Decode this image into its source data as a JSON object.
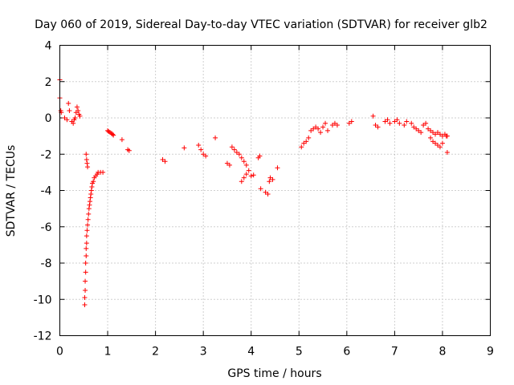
{
  "chart_data": {
    "type": "scatter",
    "title": "Day 060 of 2019, Sidereal Day-to-day VTEC variation (SDTVAR) for receiver glb2",
    "xlabel": "GPS time / hours",
    "ylabel": "SDTVAR / TECUs",
    "xlim": [
      0,
      9
    ],
    "ylim": [
      -12,
      4
    ],
    "xticks": [
      "0",
      "1",
      "2",
      "3",
      "4",
      "5",
      "6",
      "7",
      "8",
      "9"
    ],
    "yticks": [
      "-12",
      "-10",
      "-8",
      "-6",
      "-4",
      "-2",
      "0",
      "2",
      "4"
    ],
    "grid": true,
    "marker": "+",
    "series": [
      {
        "name": "SDTVAR",
        "color": "#ff0000",
        "x": [
          0.0,
          0.0,
          0.02,
          0.03,
          0.1,
          0.15,
          0.18,
          0.2,
          0.25,
          0.28,
          0.3,
          0.32,
          0.34,
          0.36,
          0.38,
          0.4,
          0.42,
          0.52,
          0.52,
          0.53,
          0.53,
          0.54,
          0.54,
          0.55,
          0.55,
          0.56,
          0.56,
          0.57,
          0.58,
          0.59,
          0.6,
          0.61,
          0.62,
          0.63,
          0.64,
          0.65,
          0.66,
          0.67,
          0.68,
          0.7,
          0.72,
          0.75,
          0.78,
          0.8,
          0.85,
          0.9,
          0.55,
          0.56,
          0.57,
          0.58,
          1.0,
          1.02,
          1.05,
          1.08,
          1.1,
          1.12,
          1.3,
          1.42,
          1.45,
          2.15,
          2.2,
          2.6,
          2.9,
          2.95,
          3.0,
          3.05,
          3.25,
          3.5,
          3.55,
          3.6,
          3.65,
          3.7,
          3.75,
          3.8,
          3.85,
          3.9,
          3.95,
          3.8,
          3.85,
          3.9,
          4.0,
          4.05,
          4.15,
          4.18,
          4.2,
          4.3,
          4.35,
          4.38,
          4.4,
          4.45,
          4.55,
          5.05,
          5.1,
          5.15,
          5.2,
          5.25,
          5.3,
          5.35,
          5.4,
          5.45,
          5.5,
          5.55,
          5.6,
          5.7,
          5.75,
          5.8,
          6.05,
          6.1,
          6.55,
          6.6,
          6.65,
          6.8,
          6.85,
          6.9,
          7.0,
          7.05,
          7.1,
          7.2,
          7.25,
          7.35,
          7.4,
          7.45,
          7.5,
          7.55,
          7.6,
          7.65,
          7.7,
          7.75,
          7.8,
          7.85,
          7.9,
          7.95,
          8.0,
          8.05,
          8.08,
          8.1,
          7.75,
          7.8,
          7.85,
          7.9,
          7.95,
          8.0,
          8.1
        ],
        "y": [
          2.1,
          1.1,
          0.4,
          0.3,
          0.0,
          -0.1,
          0.8,
          0.4,
          -0.2,
          -0.3,
          -0.1,
          0.0,
          0.3,
          0.6,
          0.4,
          0.2,
          0.1,
          -10.3,
          -9.9,
          -9.5,
          -9.0,
          -8.5,
          -8.0,
          -7.6,
          -7.2,
          -6.9,
          -6.5,
          -6.2,
          -5.9,
          -5.6,
          -5.3,
          -5.0,
          -4.8,
          -4.6,
          -4.4,
          -4.2,
          -4.0,
          -3.8,
          -3.6,
          -3.5,
          -3.3,
          -3.2,
          -3.1,
          -3.0,
          -3.0,
          -3.0,
          -2.0,
          -2.3,
          -2.5,
          -2.7,
          -0.7,
          -0.75,
          -0.8,
          -0.85,
          -0.9,
          -0.95,
          -1.2,
          -1.75,
          -1.8,
          -2.3,
          -2.4,
          -1.65,
          -1.5,
          -1.75,
          -2.0,
          -2.1,
          -1.1,
          -2.5,
          -2.6,
          -1.6,
          -1.75,
          -1.9,
          -2.0,
          -2.2,
          -2.4,
          -2.6,
          -2.9,
          -3.5,
          -3.3,
          -3.1,
          -3.2,
          -3.15,
          -2.2,
          -2.1,
          -3.9,
          -4.1,
          -4.2,
          -3.5,
          -3.3,
          -3.4,
          -2.75,
          -1.6,
          -1.4,
          -1.3,
          -1.1,
          -0.7,
          -0.6,
          -0.5,
          -0.6,
          -0.8,
          -0.5,
          -0.3,
          -0.7,
          -0.4,
          -0.3,
          -0.4,
          -0.3,
          -0.2,
          0.1,
          -0.4,
          -0.5,
          -0.2,
          -0.1,
          -0.3,
          -0.2,
          -0.1,
          -0.3,
          -0.4,
          -0.2,
          -0.3,
          -0.5,
          -0.6,
          -0.7,
          -0.8,
          -0.4,
          -0.3,
          -0.6,
          -0.7,
          -0.8,
          -0.9,
          -0.8,
          -0.9,
          -1.0,
          -0.9,
          -1.0,
          -1.0,
          -1.1,
          -1.3,
          -1.4,
          -1.5,
          -1.6,
          -1.4,
          -1.9
        ]
      }
    ]
  }
}
